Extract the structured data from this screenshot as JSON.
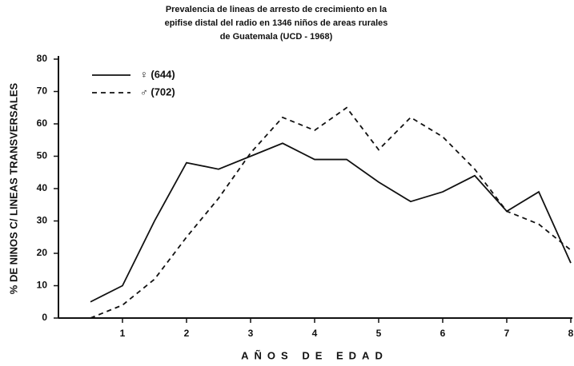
{
  "chart_data": {
    "type": "line",
    "title": [
      "Prevalencia de lineas de arresto de crecimiento en la",
      "epifise distal del radio en 1346 niños de areas rurales",
      "de Guatemala (UCD - 1968)"
    ],
    "x_label": "AÑOS DE EDAD",
    "y_label": "% DE NINOS C/ LINEAS TRANSVERSALES",
    "x": [
      0.5,
      1,
      1.5,
      2,
      2.5,
      3,
      3.5,
      4,
      4.5,
      5,
      5.5,
      6,
      6.5,
      7,
      7.5,
      8
    ],
    "series": [
      {
        "name": "♀ (644)",
        "color": "#111111",
        "dash": "solid",
        "values": [
          5,
          10,
          30,
          48,
          46,
          50,
          54,
          49,
          49,
          42,
          36,
          39,
          44,
          33,
          39,
          17
        ]
      },
      {
        "name": "♂ (702)",
        "color": "#111111",
        "dash": "dashed",
        "values": [
          0,
          4,
          12,
          25,
          37,
          51,
          62,
          58,
          65,
          52,
          62,
          56,
          46,
          33,
          29,
          21
        ]
      }
    ],
    "xlim": [
      0,
      8
    ],
    "xticks": [
      1,
      2,
      3,
      4,
      5,
      6,
      7,
      8
    ],
    "ylim": [
      0,
      80
    ],
    "yticks": [
      0,
      10,
      20,
      30,
      40,
      50,
      60,
      70,
      80
    ],
    "legend": "upper left"
  }
}
